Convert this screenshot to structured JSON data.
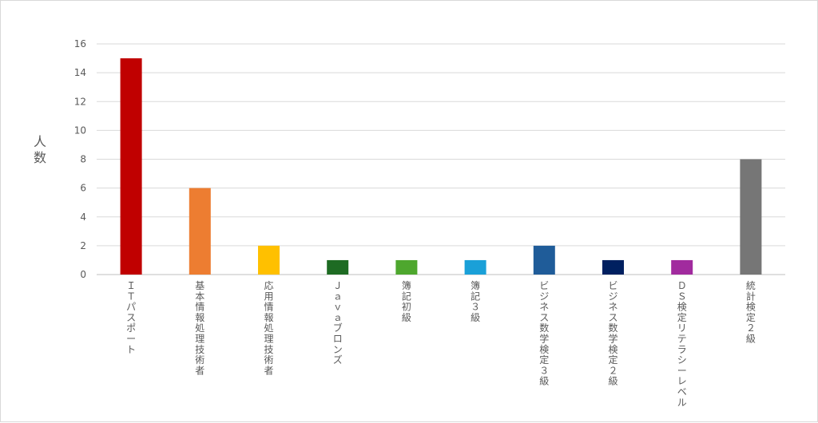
{
  "chart_data": {
    "type": "bar",
    "title": "",
    "xlabel": "",
    "ylabel": "人数",
    "ylim": [
      0,
      16
    ],
    "yticks": [
      0,
      2,
      4,
      6,
      8,
      10,
      12,
      14,
      16
    ],
    "grid": true,
    "legend": "none",
    "categories": [
      "ＩＴパスポート",
      "基本情報処理技術者",
      "応用情報処理技術者",
      "Ｊａｖａブロンズ",
      "簿記初級",
      "簿記３級",
      "ビジネス数学検定３級",
      "ビジネス数学検定２級",
      "ＤＳ検定リテラシーレベル",
      "統計検定２級"
    ],
    "values": [
      15,
      6,
      2,
      1,
      1,
      1,
      2,
      1,
      1,
      8
    ],
    "colors": [
      "#c00000",
      "#ed7d31",
      "#ffc000",
      "#1e6b23",
      "#4ea72e",
      "#1aa0d8",
      "#1f5c99",
      "#002060",
      "#a12b9e",
      "#767676"
    ]
  }
}
